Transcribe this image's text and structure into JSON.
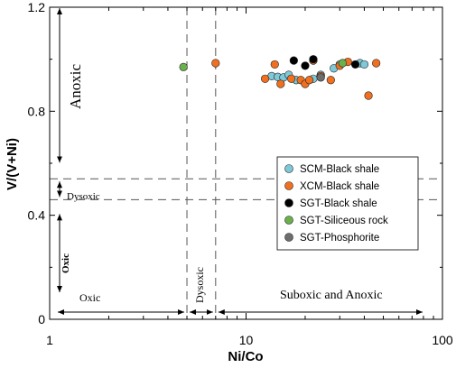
{
  "chart_data": {
    "type": "scatter",
    "xlabel": "Ni/Co",
    "ylabel": "V/(V+Ni)",
    "xscale": "log",
    "xlim": [
      1,
      100
    ],
    "ylim": [
      0,
      1.2
    ],
    "xticks": [
      1,
      10,
      100
    ],
    "yticks": [
      0,
      0.4,
      0.8,
      1.2
    ],
    "xtick_labels": [
      "1",
      "10",
      "100"
    ],
    "ytick_labels": [
      "0",
      "0.4",
      "0.8",
      "1.2"
    ],
    "grid": false,
    "legend_position": "right",
    "thresholds": {
      "x": [
        5,
        7
      ],
      "y": [
        0.46,
        0.54
      ]
    },
    "regions": {
      "anoxic": "Anoxic",
      "dysoxic_y": "Dysoxic",
      "oxic_y": "Oxic",
      "oxic_x": "Oxic",
      "dysoxic_x": "Dysoxic",
      "suboxic_anoxic": "Suboxic and Anoxic"
    },
    "series": [
      {
        "name": "SCM-Black shale",
        "color": "#7ec8d8",
        "points": [
          [
            13.5,
            0.935
          ],
          [
            14.5,
            0.932
          ],
          [
            15.5,
            0.93
          ],
          [
            16.5,
            0.94
          ],
          [
            18,
            0.92
          ],
          [
            22,
            0.925
          ],
          [
            24,
            0.94
          ],
          [
            28,
            0.965
          ],
          [
            30,
            0.98
          ],
          [
            38,
            0.985
          ],
          [
            40,
            0.98
          ]
        ]
      },
      {
        "name": "XCM-Black shale",
        "color": "#f07020",
        "points": [
          [
            7,
            0.985
          ],
          [
            12.5,
            0.925
          ],
          [
            14,
            0.98
          ],
          [
            15,
            0.905
          ],
          [
            17,
            0.925
          ],
          [
            19,
            0.92
          ],
          [
            20,
            0.905
          ],
          [
            21,
            0.92
          ],
          [
            22,
            0.995
          ],
          [
            24,
            0.935
          ],
          [
            27,
            0.92
          ],
          [
            30,
            0.975
          ],
          [
            33,
            0.99
          ],
          [
            42,
            0.86
          ],
          [
            46,
            0.985
          ]
        ]
      },
      {
        "name": "SGT-Black shale",
        "color": "#000000",
        "points": [
          [
            17.5,
            0.995
          ],
          [
            20,
            0.975
          ],
          [
            22,
            1.0
          ],
          [
            36,
            0.98
          ]
        ]
      },
      {
        "name": "SGT-Siliceous rock",
        "color": "#6ab04c",
        "points": [
          [
            4.8,
            0.97
          ],
          [
            31,
            0.985
          ]
        ]
      },
      {
        "name": "SGT-Phosphorite",
        "color": "#6d6d6d",
        "points": [
          [
            24,
            0.93
          ]
        ]
      }
    ]
  }
}
